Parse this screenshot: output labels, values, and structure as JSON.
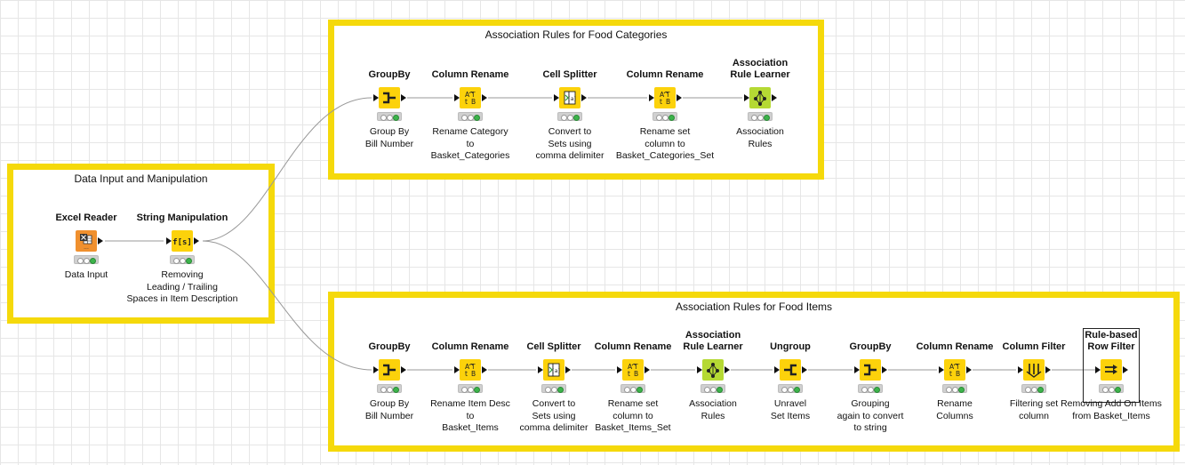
{
  "annotations": [
    {
      "id": "top",
      "title": "Association Rules for Food Categories"
    },
    {
      "id": "left",
      "title": "Data Input and Manipulation"
    },
    {
      "id": "bottom",
      "title": "Association Rules for Food Items"
    }
  ],
  "nodes": {
    "excel_reader": {
      "name": "Excel Reader",
      "desc": "Data Input",
      "icon": "excel-reader-icon",
      "color": "#f0902e"
    },
    "string_manip": {
      "name": "String Manipulation",
      "desc": "Removing\nLeading / Trailing\nSpaces in Item Description",
      "icon": "string-manipulation-icon",
      "color": "#fcd20b"
    },
    "t_groupby": {
      "name": "GroupBy",
      "desc": "Group By\nBill Number",
      "icon": "groupby-icon",
      "color": "#fcd20b"
    },
    "t_rename1": {
      "name": "Column Rename",
      "desc": "Rename  Category\nto\nBasket_Categories",
      "icon": "column-rename-icon",
      "color": "#fcd20b"
    },
    "t_splitter": {
      "name": "Cell Splitter",
      "desc": "Convert to\nSets using\ncomma delimiter",
      "icon": "cell-splitter-icon",
      "color": "#fcd20b"
    },
    "t_rename2": {
      "name": "Column Rename",
      "desc": "Rename set\ncolumn to\nBasket_Categories_Set",
      "icon": "column-rename-icon",
      "color": "#fcd20b"
    },
    "t_learner": {
      "name": "Association\nRule Learner",
      "desc": "Association\nRules",
      "icon": "association-rule-learner-icon",
      "color": "#b5d934"
    },
    "b_groupby": {
      "name": "GroupBy",
      "desc": "Group By\nBill Number",
      "icon": "groupby-icon",
      "color": "#fcd20b"
    },
    "b_rename1": {
      "name": "Column Rename",
      "desc": "Rename Item Desc\nto\nBasket_Items",
      "icon": "column-rename-icon",
      "color": "#fcd20b"
    },
    "b_splitter": {
      "name": "Cell Splitter",
      "desc": "Convert to\nSets using\ncomma delimiter",
      "icon": "cell-splitter-icon",
      "color": "#fcd20b"
    },
    "b_rename2": {
      "name": "Column Rename",
      "desc": "Rename set\ncolumn to\nBasket_Items_Set",
      "icon": "column-rename-icon",
      "color": "#fcd20b"
    },
    "b_learner": {
      "name": "Association\nRule Learner",
      "desc": "Association\nRules",
      "icon": "association-rule-learner-icon",
      "color": "#b5d934"
    },
    "b_ungroup": {
      "name": "Ungroup",
      "desc": "Unravel\nSet Items",
      "icon": "ungroup-icon",
      "color": "#fcd20b"
    },
    "b_groupby2": {
      "name": "GroupBy",
      "desc": "Grouping\nagain to convert\nto string",
      "icon": "groupby-icon",
      "color": "#fcd20b"
    },
    "b_rename3": {
      "name": "Column Rename",
      "desc": "Rename\nColumns",
      "icon": "column-rename-icon",
      "color": "#fcd20b"
    },
    "b_colfilter": {
      "name": "Column Filter",
      "desc": "Filtering set\ncolumn",
      "icon": "column-filter-icon",
      "color": "#fcd20b"
    },
    "b_rulefilter": {
      "name": "Rule-based\nRow Filter",
      "desc": "Removing Add On Items\nfrom Basket_Items",
      "icon": "rule-based-row-filter-icon",
      "color": "#fcd20b"
    }
  },
  "colors": {
    "annotation_border": "#f5d90b",
    "manipulator_node": "#fcd20b",
    "source_node": "#f0902e",
    "learner_node": "#b5d934",
    "status_ok": "#3cb44b"
  }
}
